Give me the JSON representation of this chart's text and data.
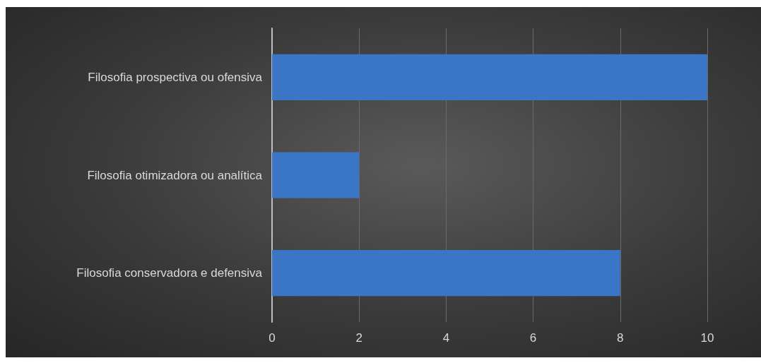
{
  "chart_data": {
    "type": "bar",
    "orientation": "horizontal",
    "categories": [
      "Filosofia prospectiva ou ofensiva",
      "Filosofia otimizadora ou analítica",
      "Filosofia conservadora e defensiva"
    ],
    "values": [
      10,
      2,
      8
    ],
    "color": "#3b76c6",
    "xlim": [
      0,
      10
    ],
    "xticks": [
      0,
      2,
      4,
      6,
      8,
      10
    ],
    "grid": "x"
  }
}
